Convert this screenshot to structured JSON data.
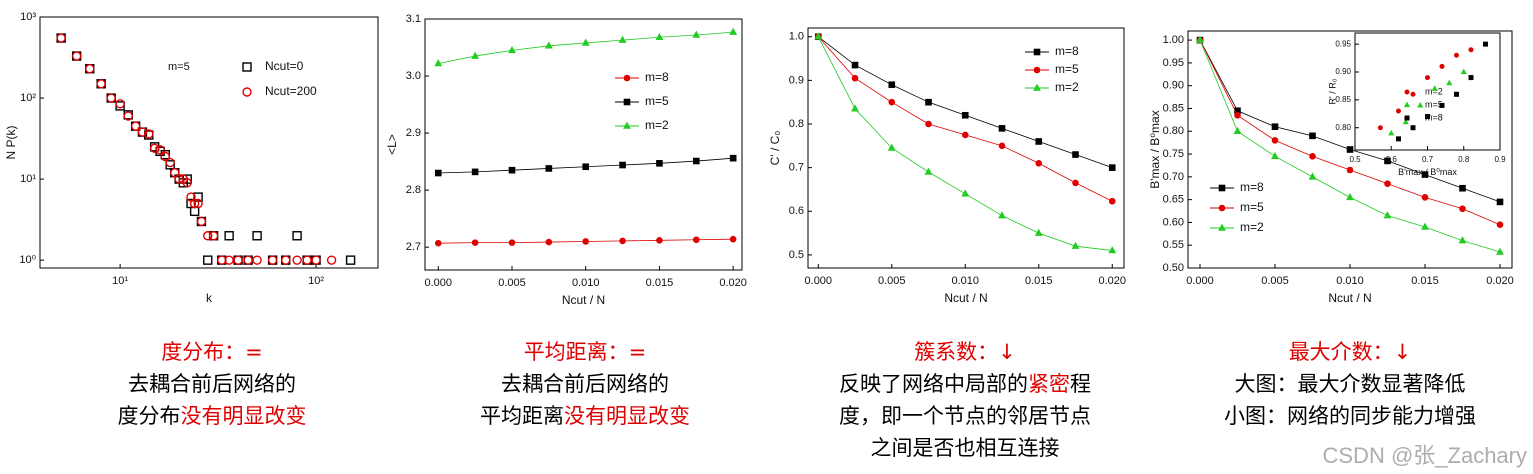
{
  "chart_data": [
    {
      "type": "scatter",
      "xlog": true,
      "ylog": true,
      "xlabel": "k",
      "ylabel": "N P(k)",
      "annotation": "m=5",
      "xlim": [
        3.9,
        207
      ],
      "ylim": [
        0.8,
        1000
      ],
      "xticks": [
        {
          "value": 10,
          "label": "10¹"
        },
        {
          "value": 100,
          "label": "10²"
        }
      ],
      "yticks": [
        {
          "value": 1,
          "label": "10⁰"
        },
        {
          "value": 10,
          "label": "10¹"
        },
        {
          "value": 100,
          "label": "10²"
        },
        {
          "value": 1000,
          "label": "10³"
        }
      ],
      "x": [
        5,
        6,
        7,
        8,
        9,
        10,
        11,
        12,
        13,
        14,
        15,
        16,
        17,
        18,
        19,
        20,
        21,
        22,
        23,
        24,
        25,
        26,
        28,
        30,
        33,
        36,
        40,
        45,
        50,
        60,
        70,
        80,
        90,
        100,
        120,
        150
      ],
      "series": [
        {
          "name": "Ncut=0",
          "color": "#000000",
          "marker": "square",
          "values": [
            550,
            330,
            230,
            150,
            100,
            80,
            62,
            45,
            38,
            35,
            25,
            22,
            20,
            15,
            12,
            10,
            9,
            10,
            5,
            4,
            6,
            3,
            1,
            2,
            1,
            2,
            1,
            1,
            2,
            1,
            1,
            2,
            1,
            1,
            null,
            1
          ]
        },
        {
          "name": "Ncut=200",
          "color": "#e00000",
          "marker": "circle",
          "values": [
            550,
            330,
            230,
            150,
            100,
            85,
            60,
            45,
            38,
            36,
            24,
            23,
            19,
            16,
            12,
            10,
            10,
            9,
            6,
            5,
            5,
            3,
            2,
            2,
            1,
            1,
            1,
            1,
            1,
            1,
            1,
            1,
            1,
            1,
            1,
            null
          ]
        }
      ]
    },
    {
      "type": "line",
      "xlabel": "Ncut / N",
      "ylabel": "<L>",
      "xlim": [
        -0.0009,
        0.0206
      ],
      "ylim": [
        2.66,
        3.1
      ],
      "xticks": [
        {
          "value": 0,
          "label": "0.000"
        },
        0.005,
        {
          "value": 0.01,
          "label": "0.010"
        },
        0.015,
        {
          "value": 0.02,
          "label": "0.020"
        }
      ],
      "yticks": [
        2.7,
        2.8,
        2.9,
        {
          "value": 3,
          "label": "3.0"
        },
        3.1
      ],
      "x": [
        0,
        0.0025,
        0.005,
        0.0075,
        0.01,
        0.0125,
        0.015,
        0.0175,
        0.02
      ],
      "series": [
        {
          "name": "m=8",
          "color": "#e00000",
          "marker": "circle",
          "values": [
            2.707,
            2.708,
            2.708,
            2.709,
            2.71,
            2.711,
            2.712,
            2.713,
            2.714
          ]
        },
        {
          "name": "m=5",
          "color": "#000000",
          "marker": "square",
          "values": [
            2.83,
            2.832,
            2.835,
            2.838,
            2.841,
            2.844,
            2.847,
            2.851,
            2.856
          ]
        },
        {
          "name": "m=2",
          "color": "#22cc22",
          "marker": "triangle",
          "values": [
            3.022,
            3.035,
            3.045,
            3.053,
            3.058,
            3.063,
            3.068,
            3.072,
            3.077
          ]
        }
      ]
    },
    {
      "type": "line",
      "xlabel": "Ncut / N",
      "ylabel": "C' / C₀",
      "xlim": [
        -0.0007,
        0.0208
      ],
      "ylim": [
        0.47,
        1.02
      ],
      "xticks": [
        {
          "value": 0,
          "label": "0.000"
        },
        0.005,
        {
          "value": 0.01,
          "label": "0.010"
        },
        0.015,
        {
          "value": 0.02,
          "label": "0.020"
        }
      ],
      "yticks": [
        0.5,
        0.6,
        0.7,
        0.8,
        0.9,
        {
          "value": 1,
          "label": "1.0"
        }
      ],
      "x": [
        0,
        0.0025,
        0.005,
        0.0075,
        0.01,
        0.0125,
        0.015,
        0.0175,
        0.02
      ],
      "series": [
        {
          "name": "m=8",
          "color": "#000000",
          "marker": "square",
          "values": [
            1,
            0.935,
            0.89,
            0.85,
            0.82,
            0.79,
            0.76,
            0.73,
            0.7
          ]
        },
        {
          "name": "m=5",
          "color": "#e00000",
          "marker": "circle",
          "values": [
            1,
            0.905,
            0.85,
            0.8,
            0.775,
            0.75,
            0.71,
            0.665,
            0.623
          ]
        },
        {
          "name": "m=2",
          "color": "#22cc22",
          "marker": "triangle",
          "values": [
            1,
            0.835,
            0.745,
            0.69,
            0.64,
            0.59,
            0.55,
            0.52,
            0.51
          ]
        }
      ]
    },
    {
      "type": "line",
      "xlabel": "Ncut / N",
      "ylabel": "B'max / B⁰max",
      "xlim": [
        -0.0008,
        0.0208
      ],
      "ylim": [
        0.5,
        1.02
      ],
      "xticks": [
        {
          "value": 0,
          "label": "0.000"
        },
        0.005,
        {
          "value": 0.01,
          "label": "0.010"
        },
        0.015,
        {
          "value": 0.02,
          "label": "0.020"
        }
      ],
      "yticks": [
        {
          "value": 0.5,
          "label": "0.50"
        },
        0.55,
        {
          "value": 0.6,
          "label": "0.60"
        },
        0.65,
        {
          "value": 0.7,
          "label": "0.70"
        },
        0.75,
        {
          "value": 0.8,
          "label": "0.80"
        },
        0.85,
        {
          "value": 0.9,
          "label": "0.90"
        },
        0.95,
        {
          "value": 1,
          "label": "1.00"
        }
      ],
      "x": [
        0,
        0.0025,
        0.005,
        0.0075,
        0.01,
        0.0125,
        0.015,
        0.0175,
        0.02
      ],
      "series": [
        {
          "name": "m=8",
          "color": "#000000",
          "marker": "square",
          "values": [
            1,
            0.845,
            0.81,
            0.79,
            0.76,
            0.735,
            0.705,
            0.675,
            0.645
          ]
        },
        {
          "name": "m=5",
          "color": "#e00000",
          "marker": "circle",
          "values": [
            1,
            0.835,
            0.78,
            0.745,
            0.715,
            0.685,
            0.655,
            0.63,
            0.595
          ]
        },
        {
          "name": "m=2",
          "color": "#22cc22",
          "marker": "triangle",
          "values": [
            1,
            0.8,
            0.745,
            0.7,
            0.655,
            0.615,
            0.59,
            0.56,
            0.535
          ]
        }
      ]
    },
    {
      "type": "scatter",
      "xlabel": "B'max / B⁰max",
      "ylabel": "R' / R₀",
      "xlim": [
        0.5,
        0.9
      ],
      "ylim": [
        0.76,
        0.97
      ],
      "xticks": [
        0.5,
        0.6,
        0.7,
        0.8,
        0.9
      ],
      "yticks": [
        {
          "value": 0.8,
          "label": "0.80"
        },
        0.85,
        {
          "value": 0.9,
          "label": "0.90"
        },
        0.95
      ],
      "series": [
        {
          "name": "m=2",
          "color": "#e00000",
          "marker": "circle",
          "x": [
            0.57,
            0.62,
            0.66,
            0.7,
            0.74,
            0.78,
            0.82
          ],
          "values": [
            0.8,
            0.83,
            0.86,
            0.89,
            0.91,
            0.93,
            0.94
          ]
        },
        {
          "name": "m=5",
          "color": "#22cc22",
          "marker": "triangle",
          "x": [
            0.6,
            0.64,
            0.68,
            0.72,
            0.76,
            0.8
          ],
          "values": [
            0.79,
            0.81,
            0.84,
            0.87,
            0.88,
            0.9
          ]
        },
        {
          "name": "m=8",
          "color": "#000000",
          "marker": "square",
          "x": [
            0.62,
            0.66,
            0.7,
            0.74,
            0.78,
            0.82,
            0.86
          ],
          "values": [
            0.78,
            0.8,
            0.82,
            0.84,
            0.86,
            0.89,
            0.95
          ]
        }
      ]
    }
  ],
  "captions": [
    {
      "title": "度分布：=",
      "lines": [
        [
          {
            "text": "去耦合前后网络的"
          }
        ],
        [
          {
            "text": "度分布"
          },
          {
            "text": "没有明显改变",
            "color": "#e00000"
          }
        ]
      ]
    },
    {
      "title": "平均距离：=",
      "lines": [
        [
          {
            "text": "去耦合前后网络的"
          }
        ],
        [
          {
            "text": "平均距离"
          },
          {
            "text": "没有明显改变",
            "color": "#e00000"
          }
        ]
      ]
    },
    {
      "title": "簇系数：↓",
      "lines": [
        [
          {
            "text": "反映了网络中局部的"
          },
          {
            "text": "紧密",
            "color": "#e00000"
          },
          {
            "text": "程"
          }
        ],
        [
          {
            "text": "度，即一个节点的邻居节点"
          }
        ],
        [
          {
            "text": "之间是否也相互连接"
          }
        ]
      ]
    },
    {
      "title": "最大介数：↓",
      "lines": [
        [
          {
            "text": "大图：最大介数显著降低"
          }
        ],
        [
          {
            "text": "小图：网络的同步能力增强"
          }
        ]
      ]
    }
  ],
  "watermark": "CSDN @张_Zachary"
}
